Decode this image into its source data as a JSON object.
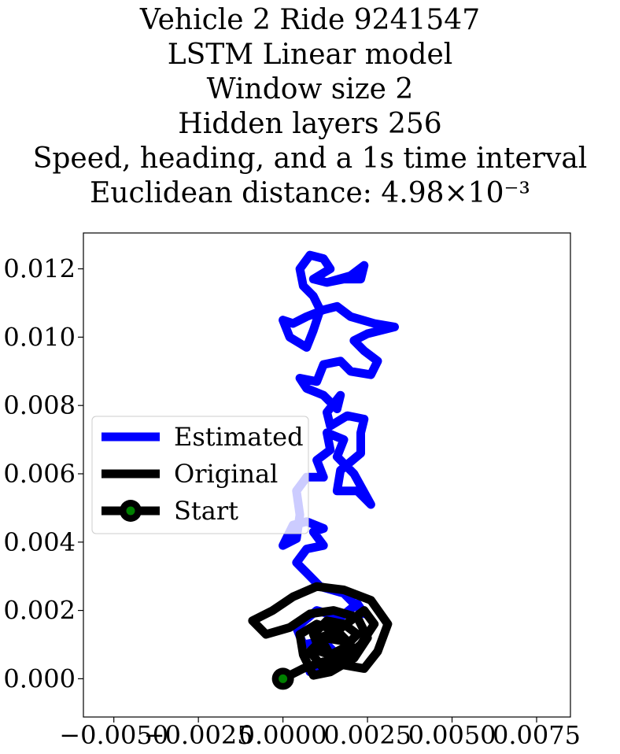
{
  "chart_data": {
    "type": "line",
    "title_lines": [
      "Vehicle 2 Ride 9241547",
      "LSTM Linear model",
      "Window size 2",
      "Hidden layers 256",
      "Speed, heading, and a 1s time interval",
      "Euclidean distance: 4.98×10⁻³"
    ],
    "xlabel": "",
    "ylabel": "",
    "xlim": [
      -0.0059,
      0.0085
    ],
    "ylim": [
      -0.00112,
      0.01305
    ],
    "xticks": [
      -0.005,
      -0.0025,
      0.0,
      0.0025,
      0.005,
      0.0075
    ],
    "xtick_labels": [
      "−0.0050",
      "−0.0025",
      "0.0000",
      "0.0025",
      "0.0050",
      "0.0075"
    ],
    "yticks": [
      0.0,
      0.002,
      0.004,
      0.006,
      0.008,
      0.01,
      0.012
    ],
    "ytick_labels": [
      "0.000",
      "0.002",
      "0.004",
      "0.006",
      "0.008",
      "0.010",
      "0.012"
    ],
    "grid": false,
    "legend_position": "center-left",
    "colors": {
      "estimated": "#0000ff",
      "original": "#000000",
      "start_fill": "#008000",
      "start_edge": "#000000"
    },
    "series": [
      {
        "name": "Estimated",
        "color": "#0000ff",
        "points": [
          [
            0.0008,
            0.0002
          ],
          [
            0.0014,
            0.0003
          ],
          [
            0.0016,
            0.0007
          ],
          [
            0.0012,
            0.0011
          ],
          [
            0.0006,
            0.001
          ],
          [
            0.0004,
            0.0015
          ],
          [
            0.001,
            0.002
          ],
          [
            0.0017,
            0.0018
          ],
          [
            0.0022,
            0.0022
          ],
          [
            0.0024,
            0.0019
          ],
          [
            0.0018,
            0.0025
          ],
          [
            0.0011,
            0.0027
          ],
          [
            0.0007,
            0.0031
          ],
          [
            0.0004,
            0.0034
          ],
          [
            0.0007,
            0.0038
          ],
          [
            0.0012,
            0.0039
          ],
          [
            0.0009,
            0.0043
          ],
          [
            0.0012,
            0.0044
          ],
          [
            0.0007,
            0.0046
          ],
          [
            0.0003,
            0.0045
          ],
          [
            0.0,
            0.0039
          ],
          [
            0.0004,
            0.0041
          ],
          [
            0.0005,
            0.0048
          ],
          [
            0.0004,
            0.0055
          ],
          [
            0.0007,
            0.0059
          ],
          [
            0.0012,
            0.0059
          ],
          [
            0.001,
            0.0064
          ],
          [
            0.0014,
            0.0067
          ],
          [
            0.0013,
            0.0072
          ],
          [
            0.0018,
            0.007
          ],
          [
            0.0016,
            0.0065
          ],
          [
            0.0021,
            0.006
          ],
          [
            0.0026,
            0.0051
          ],
          [
            0.0022,
            0.0055
          ],
          [
            0.0016,
            0.0055
          ],
          [
            0.0017,
            0.0061
          ],
          [
            0.0023,
            0.0066
          ],
          [
            0.0023,
            0.0072
          ],
          [
            0.0024,
            0.0076
          ],
          [
            0.0019,
            0.0077
          ],
          [
            0.0014,
            0.0074
          ],
          [
            0.0013,
            0.0078
          ],
          [
            0.0017,
            0.0083
          ],
          [
            0.0016,
            0.0079
          ],
          [
            0.0012,
            0.0083
          ],
          [
            0.0007,
            0.0085
          ],
          [
            0.0005,
            0.0088
          ],
          [
            0.001,
            0.0087
          ],
          [
            0.0012,
            0.0092
          ],
          [
            0.0017,
            0.0093
          ],
          [
            0.002,
            0.009
          ],
          [
            0.0026,
            0.0089
          ],
          [
            0.0028,
            0.0093
          ],
          [
            0.0024,
            0.0096
          ],
          [
            0.0021,
            0.0099
          ],
          [
            0.0025,
            0.0101
          ],
          [
            0.0033,
            0.0103
          ],
          [
            0.0027,
            0.0104
          ],
          [
            0.002,
            0.0106
          ],
          [
            0.0016,
            0.0109
          ],
          [
            0.0012,
            0.0108
          ],
          [
            0.0007,
            0.0106
          ],
          [
            0.0003,
            0.0104
          ],
          [
            0.0,
            0.0105
          ],
          [
            0.0002,
            0.01
          ],
          [
            0.0007,
            0.0097
          ],
          [
            0.0009,
            0.0102
          ],
          [
            0.0011,
            0.0108
          ],
          [
            0.0009,
            0.0112
          ],
          [
            0.0006,
            0.0115
          ],
          [
            0.0005,
            0.012
          ],
          [
            0.0008,
            0.0124
          ],
          [
            0.0012,
            0.0123
          ],
          [
            0.0014,
            0.012
          ],
          [
            0.0009,
            0.0117
          ],
          [
            0.0013,
            0.0116
          ],
          [
            0.0018,
            0.0117
          ],
          [
            0.0023,
            0.0117
          ],
          [
            0.0024,
            0.0121
          ],
          [
            0.002,
            0.0118
          ],
          [
            0.0013,
            0.0116
          ]
        ]
      },
      {
        "name": "Original",
        "color": "#000000",
        "points": [
          [
            0.0,
            0.0
          ],
          [
            0.0006,
            0.0003
          ],
          [
            0.0012,
            0.0005
          ],
          [
            0.0018,
            0.0004
          ],
          [
            0.0024,
            0.0003
          ],
          [
            0.0028,
            0.0008
          ],
          [
            0.0031,
            0.0016
          ],
          [
            0.0026,
            0.0023
          ],
          [
            0.0018,
            0.0026
          ],
          [
            0.001,
            0.0027
          ],
          [
            0.0003,
            0.0024
          ],
          [
            -0.0003,
            0.002
          ],
          [
            -0.0009,
            0.0017
          ],
          [
            -0.0005,
            0.0013
          ],
          [
            0.0002,
            0.0015
          ],
          [
            0.0008,
            0.0019
          ],
          [
            0.0015,
            0.002
          ],
          [
            0.0022,
            0.0018
          ],
          [
            0.0025,
            0.0012
          ],
          [
            0.0021,
            0.0006
          ],
          [
            0.0014,
            0.0002
          ],
          [
            0.0009,
            0.0001
          ],
          [
            0.0006,
            0.0007
          ],
          [
            0.0005,
            0.0013
          ],
          [
            0.001,
            0.0016
          ],
          [
            0.0016,
            0.0014
          ],
          [
            0.002,
            0.001
          ],
          [
            0.0017,
            0.0006
          ],
          [
            0.0011,
            0.0008
          ],
          [
            0.0009,
            0.0013
          ],
          [
            0.0013,
            0.0017
          ],
          [
            0.0018,
            0.0016
          ],
          [
            0.0022,
            0.0013
          ],
          [
            0.0018,
            0.0009
          ],
          [
            0.0014,
            0.0007
          ],
          [
            0.0011,
            0.0012
          ],
          [
            0.0016,
            0.0014
          ],
          [
            0.0024,
            0.002
          ],
          [
            0.0027,
            0.0016
          ],
          [
            0.0023,
            0.001
          ],
          [
            0.0017,
            0.0005
          ],
          [
            0.0012,
            0.0003
          ],
          [
            0.0008,
            0.0008
          ],
          [
            0.0012,
            0.0012
          ],
          [
            0.0018,
            0.0011
          ]
        ]
      },
      {
        "name": "Start",
        "marker": "circle",
        "points": [
          [
            0.0,
            0.0
          ]
        ]
      }
    ]
  }
}
